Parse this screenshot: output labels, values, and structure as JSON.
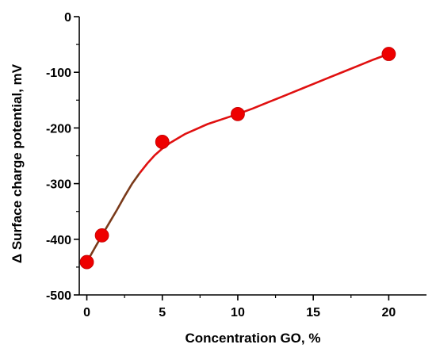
{
  "chart_data": {
    "type": "scatter",
    "title": "",
    "xlabel": "Concentration GO, %",
    "ylabel": "Δ Surface charge potential, mV",
    "xlim": [
      -0.5,
      22.5
    ],
    "ylim": [
      -500,
      0
    ],
    "x_ticks": [
      0,
      5,
      10,
      15,
      20
    ],
    "y_ticks": [
      0,
      -100,
      -200,
      -300,
      -400,
      -500
    ],
    "grid": false,
    "legend": "none",
    "series": [
      {
        "x": [
          0,
          1,
          5,
          10,
          20
        ],
        "y": [
          -441,
          -393,
          -225,
          -175,
          -67
        ],
        "marker_color": "#ee0000"
      }
    ],
    "fit_curve": {
      "x": [
        0,
        0.5,
        1,
        1.5,
        2,
        2.5,
        3,
        3.5,
        4,
        4.5,
        5,
        5.5,
        6,
        6.5,
        7,
        8,
        9,
        10,
        11,
        12,
        13,
        14,
        15,
        16,
        17,
        18,
        19,
        20
      ],
      "y": [
        -441,
        -417,
        -393,
        -370,
        -347,
        -323,
        -300,
        -281,
        -264,
        -249,
        -237,
        -227,
        -219,
        -211,
        -205,
        -193,
        -184,
        -175,
        -165,
        -154,
        -143,
        -132,
        -121,
        -110,
        -99,
        -88,
        -77,
        -67
      ],
      "color": "#e01010",
      "early_segment_color": "#7a3a1a"
    }
  }
}
